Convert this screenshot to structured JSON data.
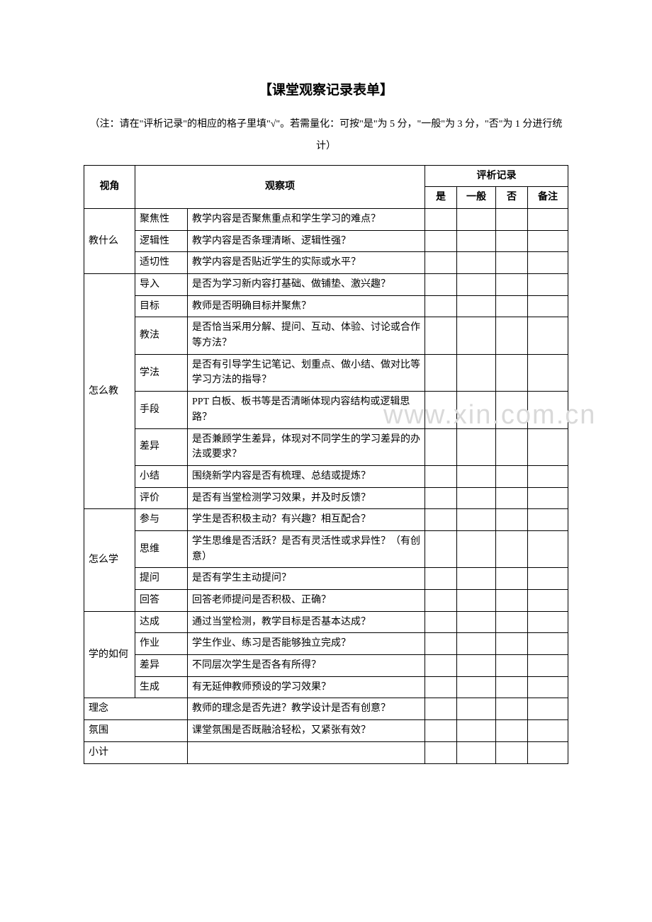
{
  "title": "【课堂观察记录表单】",
  "note": "（注：请在\"评析记录\"的相应的格子里填\"√\"。若需量化：可按\"是\"为 5 分，\"一般\"为 3 分，\"否\"为 1 分进行统计）",
  "headers": {
    "angle": "视角",
    "item": "观察项",
    "record": "评析记录",
    "yes": "是",
    "general": "一般",
    "no": "否",
    "remark": "备注"
  },
  "watermark": "www.xin.com.cn",
  "sections": [
    {
      "angle": "教什么",
      "rows": [
        {
          "sub": "聚焦性",
          "q": "教学内容是否聚焦重点和学生学习的难点？"
        },
        {
          "sub": "逻辑性",
          "q": "教学内容是否条理清晰、逻辑性强？"
        },
        {
          "sub": "适切性",
          "q": "教学内容是否贴近学生的实际或水平？"
        }
      ]
    },
    {
      "angle": "怎么教",
      "rows": [
        {
          "sub": "导入",
          "q": "是否为学习新内容打基础、做铺垫、激兴趣？"
        },
        {
          "sub": "目标",
          "q": "教师是否明确目标并聚焦？"
        },
        {
          "sub": "教法",
          "q": "是否恰当采用分解、提问、互动、体验、讨论或合作等方法？"
        },
        {
          "sub": "学法",
          "q": "是否有引导学生记笔记、划重点、做小结、做对比等学习方法的指导？"
        },
        {
          "sub": "手段",
          "q": "PPT 白板、板书等是否清晰体现内容结构或逻辑思路？"
        },
        {
          "sub": "差异",
          "q": "是否兼顾学生差异，体现对不同学生的学习差异的办法或要求？"
        },
        {
          "sub": "小结",
          "q": "围绕新学内容是否有梳理、总结或提炼？"
        },
        {
          "sub": "评价",
          "q": "是否有当堂检测学习效果，并及时反馈？"
        }
      ]
    },
    {
      "angle": "怎么学",
      "rows": [
        {
          "sub": "参与",
          "q": "学生是否积极主动？有兴趣？相互配合？"
        },
        {
          "sub": "思维",
          "q": "学生思维是否活跃？是否有灵活性或求异性？（有创意）"
        },
        {
          "sub": "提问",
          "q": "是否有学生主动提问？"
        },
        {
          "sub": "回答",
          "q": "回答老师提问是否积极、正确？"
        }
      ]
    },
    {
      "angle": "学的如何",
      "rows": [
        {
          "sub": "达成",
          "q": "通过当堂检测，教学目标是否基本达成？"
        },
        {
          "sub": "作业",
          "q": "学生作业、练习是否能够独立完成？"
        },
        {
          "sub": "差异",
          "q": "不同层次学生是否各有所得？"
        },
        {
          "sub": "生成",
          "q": "有无延伸教师预设的学习效果？"
        }
      ]
    }
  ],
  "extra": [
    {
      "angle": "理念",
      "q": "教师的理念是否先进？教学设计是否有创意？"
    },
    {
      "angle": "氛围",
      "q": "课堂氛围是否既融洽轻松，又紧张有效？"
    }
  ],
  "subtotal": "小计"
}
